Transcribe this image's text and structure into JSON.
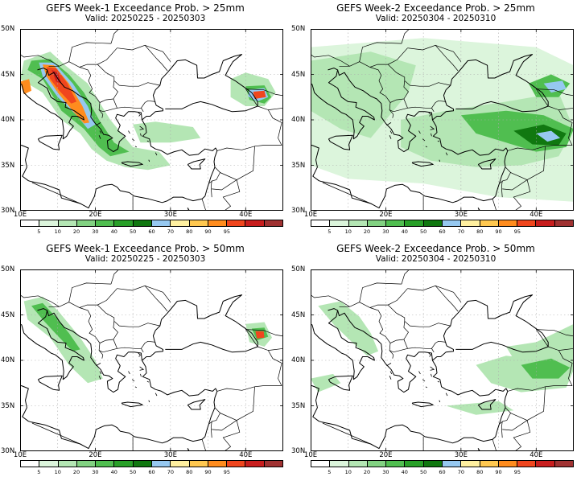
{
  "panels": [
    {
      "title": "GEFS Week-1 Exceedance Prob. > 25mm",
      "valid": "Valid: 20250225 - 20250303",
      "variant": "w1_25"
    },
    {
      "title": "GEFS Week-2 Exceedance Prob. > 25mm",
      "valid": "Valid: 20250304 - 20250310",
      "variant": "w2_25"
    },
    {
      "title": "GEFS Week-1 Exceedance Prob. > 50mm",
      "valid": "Valid: 20250225 - 20250303",
      "variant": "w1_50"
    },
    {
      "title": "GEFS Week-2 Exceedance Prob. > 50mm",
      "valid": "Valid: 20250304 - 20250310",
      "variant": "w2_50"
    }
  ],
  "lat_labels": [
    "50N",
    "45N",
    "40N",
    "35N",
    "30N"
  ],
  "lon_labels": [
    "10E",
    "20E",
    "30E",
    "40E"
  ],
  "colorbar": {
    "labels": [
      "5",
      "10",
      "20",
      "30",
      "40",
      "50",
      "60",
      "70",
      "80",
      "90",
      "95"
    ],
    "colors": [
      "#ffffff",
      "#dcf5dc",
      "#b4e6b4",
      "#82d282",
      "#50be50",
      "#28a028",
      "#107810",
      "#96c8f0",
      "#fff0a0",
      "#ffc850",
      "#ff8c1e",
      "#f0461e",
      "#c81e1e",
      "#a03232"
    ]
  }
}
